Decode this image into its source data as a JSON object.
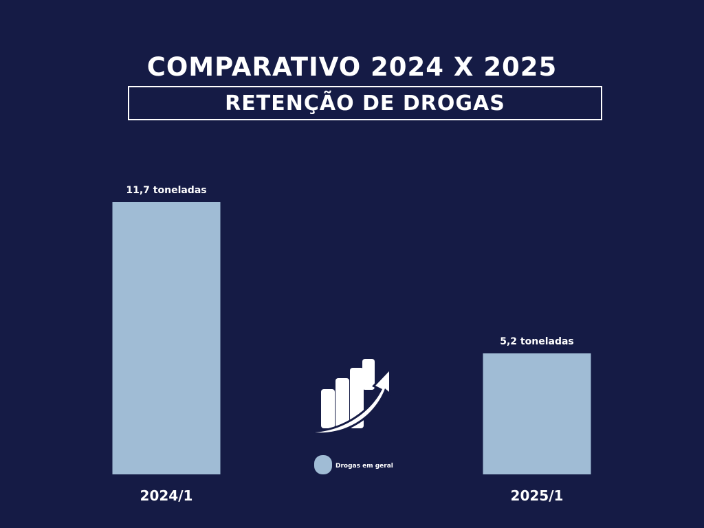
{
  "colors": {
    "background": "#151b45",
    "bar": "#a0bcd5",
    "text": "#ffffff"
  },
  "title": "COMPARATIVO 2024 X 2025",
  "subtitle": "RETENÇÃO DE DROGAS",
  "icon": "growth-chart-arrow-icon",
  "chart_data": {
    "type": "bar",
    "title": "COMPARATIVO 2024 X 2025",
    "subtitle": "RETENÇÃO DE DROGAS",
    "categories": [
      "2024/1",
      "2025/1"
    ],
    "series": [
      {
        "name": "Drogas em geral",
        "values": [
          11.7,
          5.2
        ],
        "data_labels": [
          "11,7 toneladas",
          "5,2 toneladas"
        ]
      }
    ],
    "xlabel": "",
    "ylabel": "",
    "grid": false,
    "legend": "bottom-center"
  }
}
